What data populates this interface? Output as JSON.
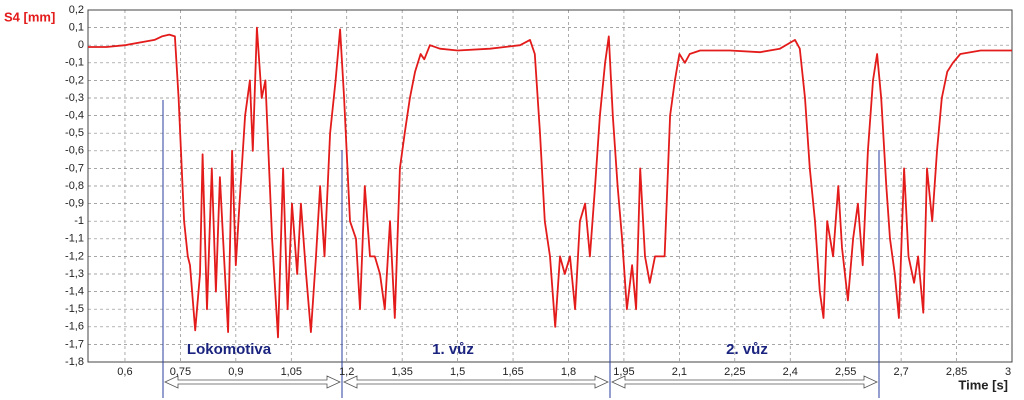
{
  "chart_data": {
    "type": "line",
    "y_label": "S4 [mm]",
    "x_label": "Time [s]",
    "annotations": [
      "Lokomotiva",
      "1. vůz",
      "2. vůz"
    ],
    "color": "#e31b1b",
    "grid": true,
    "xlim": [
      0.5,
      3.0
    ],
    "ylim": [
      -1.8,
      0.2
    ],
    "xticks": [
      {
        "value": 0.6,
        "label": "0,6"
      },
      {
        "value": 0.75,
        "label": "0,75"
      },
      {
        "value": 0.9,
        "label": "0,9"
      },
      {
        "value": 1.05,
        "label": "1,05"
      },
      {
        "value": 1.2,
        "label": "1,2"
      },
      {
        "value": 1.35,
        "label": "1,35"
      },
      {
        "value": 1.5,
        "label": "1,5"
      },
      {
        "value": 1.65,
        "label": "1,65"
      },
      {
        "value": 1.8,
        "label": "1,8"
      },
      {
        "value": 1.95,
        "label": "1,95"
      },
      {
        "value": 2.1,
        "label": "2,1"
      },
      {
        "value": 2.25,
        "label": "2,25"
      },
      {
        "value": 2.4,
        "label": "2,4"
      },
      {
        "value": 2.55,
        "label": "2,55"
      },
      {
        "value": 2.7,
        "label": "2,7"
      },
      {
        "value": 2.85,
        "label": "2,85"
      },
      3
    ],
    "yticks": [
      {
        "value": 0.2,
        "label": "0,2"
      },
      {
        "value": 0.1,
        "label": "0,1"
      },
      0,
      {
        "value": -0.1,
        "label": "-0,1"
      },
      {
        "value": -0.2,
        "label": "-0,2"
      },
      {
        "value": -0.3,
        "label": "-0,3"
      },
      {
        "value": -0.4,
        "label": "-0,4"
      },
      {
        "value": -0.5,
        "label": "-0,5"
      },
      {
        "value": -0.6,
        "label": "-0,6"
      },
      {
        "value": -0.7,
        "label": "-0,7"
      },
      {
        "value": -0.8,
        "label": "-0,8"
      },
      {
        "value": -0.9,
        "label": "-0,9"
      },
      -1,
      {
        "value": -1.1,
        "label": "-1,1"
      },
      {
        "value": -1.2,
        "label": "-1,2"
      },
      {
        "value": -1.3,
        "label": "-1,3"
      },
      {
        "value": -1.4,
        "label": "-1,4"
      },
      {
        "value": -1.5,
        "label": "-1,5"
      },
      {
        "value": -1.6,
        "label": "-1,6"
      },
      {
        "value": -1.7,
        "label": "-1,7"
      },
      {
        "value": -1.8,
        "label": "-1,8"
      }
    ],
    "x": [
      0.5,
      0.55,
      0.6,
      0.68,
      0.7,
      0.72,
      0.735,
      0.745,
      0.76,
      0.77,
      0.776,
      0.79,
      0.803,
      0.81,
      0.822,
      0.835,
      0.846,
      0.857,
      0.868,
      0.879,
      0.89,
      0.9,
      0.91,
      0.925,
      0.938,
      0.946,
      0.957,
      0.97,
      0.98,
      0.998,
      1.014,
      1.028,
      1.04,
      1.052,
      1.066,
      1.076,
      1.09,
      1.103,
      1.117,
      1.128,
      1.14,
      1.155,
      1.17,
      1.182,
      1.193,
      1.209,
      1.225,
      1.236,
      1.249,
      1.263,
      1.276,
      1.29,
      1.303,
      1.317,
      1.33,
      1.344,
      1.357,
      1.371,
      1.385,
      1.4,
      1.41,
      1.425,
      1.452,
      1.5,
      1.588,
      1.669,
      1.696,
      1.709,
      1.723,
      1.736,
      1.75,
      1.764,
      1.777,
      1.79,
      1.804,
      1.818,
      1.831,
      1.845,
      1.858,
      1.872,
      1.885,
      1.899,
      1.909,
      1.92,
      1.933,
      1.945,
      1.958,
      1.972,
      1.983,
      1.994,
      2.007,
      2.02,
      2.034,
      2.048,
      2.06,
      2.075,
      2.088,
      2.1,
      2.115,
      2.128,
      2.156,
      2.237,
      2.318,
      2.372,
      2.413,
      2.426,
      2.44,
      2.453,
      2.467,
      2.48,
      2.49,
      2.5,
      2.516,
      2.53,
      2.54,
      2.556,
      2.57,
      2.583,
      2.596,
      2.61,
      2.624,
      2.635,
      2.646,
      2.66,
      2.67,
      2.683,
      2.694,
      2.708,
      2.72,
      2.735,
      2.746,
      2.76,
      2.77,
      2.784,
      2.797,
      2.81,
      2.825,
      2.84,
      2.86,
      2.915,
      2.97,
      3.0
    ],
    "values": [
      -0.01,
      -0.01,
      0.0,
      0.03,
      0.05,
      0.06,
      0.05,
      -0.3,
      -1.0,
      -1.2,
      -1.25,
      -1.62,
      -1.3,
      -0.62,
      -1.5,
      -0.7,
      -1.4,
      -0.75,
      -1.2,
      -1.63,
      -0.6,
      -1.25,
      -0.9,
      -0.4,
      -0.2,
      -0.6,
      0.1,
      -0.3,
      -0.2,
      -1.1,
      -1.66,
      -0.7,
      -1.5,
      -0.9,
      -1.3,
      -0.9,
      -1.3,
      -1.63,
      -1.2,
      -0.8,
      -1.2,
      -0.5,
      -0.2,
      0.09,
      -0.3,
      -1.0,
      -1.1,
      -1.5,
      -0.8,
      -1.2,
      -1.2,
      -1.3,
      -1.5,
      -1.0,
      -1.55,
      -0.7,
      -0.5,
      -0.3,
      -0.15,
      -0.05,
      -0.08,
      0.0,
      -0.02,
      -0.03,
      -0.02,
      0.0,
      0.03,
      -0.05,
      -0.5,
      -1.0,
      -1.2,
      -1.6,
      -1.2,
      -1.3,
      -1.2,
      -1.5,
      -1.0,
      -0.9,
      -1.2,
      -0.8,
      -0.4,
      -0.1,
      0.05,
      -0.4,
      -0.8,
      -1.1,
      -1.5,
      -1.25,
      -1.5,
      -0.7,
      -1.2,
      -1.35,
      -1.2,
      -1.2,
      -1.2,
      -0.4,
      -0.2,
      -0.05,
      -0.1,
      -0.05,
      -0.03,
      -0.03,
      -0.04,
      -0.02,
      0.03,
      -0.02,
      -0.3,
      -0.7,
      -1.0,
      -1.4,
      -1.55,
      -1.0,
      -1.2,
      -0.8,
      -1.15,
      -1.45,
      -1.1,
      -0.9,
      -1.25,
      -0.6,
      -0.2,
      -0.05,
      -0.3,
      -0.8,
      -1.1,
      -1.3,
      -1.55,
      -0.7,
      -1.2,
      -1.35,
      -1.2,
      -1.52,
      -0.7,
      -1.0,
      -0.6,
      -0.3,
      -0.15,
      -0.1,
      -0.05,
      -0.03,
      -0.03,
      -0.03
    ]
  }
}
